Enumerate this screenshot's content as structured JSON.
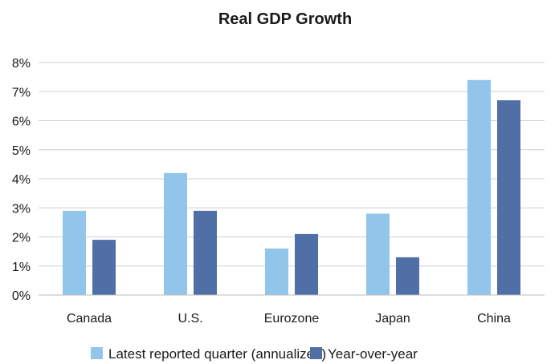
{
  "chart_data": {
    "type": "bar",
    "title": "Real GDP Growth",
    "categories": [
      "Canada",
      "U.S.",
      "Eurozone",
      "Japan",
      "China"
    ],
    "series": [
      {
        "name": "Latest reported quarter (annualized)",
        "color": "#92c5ea",
        "values": [
          2.9,
          4.2,
          1.6,
          2.8,
          7.4
        ]
      },
      {
        "name": "Year-over-year",
        "color": "#4f6fa6",
        "values": [
          1.9,
          2.9,
          2.1,
          1.3,
          6.7
        ]
      }
    ],
    "ylim": [
      0,
      8
    ],
    "yticks": [
      "0%",
      "1%",
      "2%",
      "3%",
      "4%",
      "5%",
      "6%",
      "7%",
      "8%"
    ],
    "ytick_values": [
      0,
      1,
      2,
      3,
      4,
      5,
      6,
      7,
      8
    ],
    "grid": true,
    "legend": "bottom",
    "xlabel": "",
    "ylabel": ""
  }
}
